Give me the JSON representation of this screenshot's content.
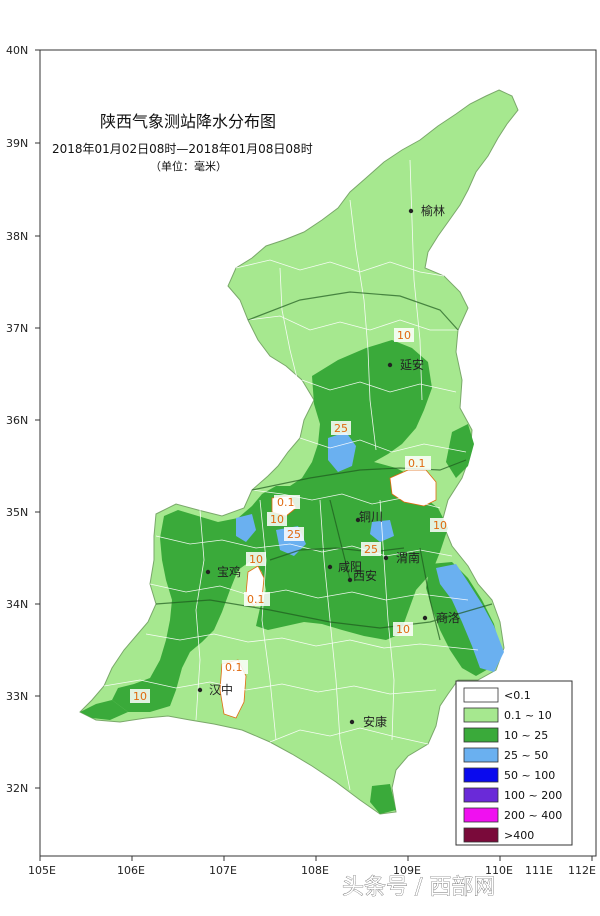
{
  "title": "陕西气象测站降水分布图",
  "subtitle": "2018年01月02日08时—2018年01月08日08时",
  "unit": "（单位：毫米）",
  "x_ticks": [
    "105E",
    "106E",
    "107E",
    "108E",
    "109E",
    "110E",
    "111E",
    "112E"
  ],
  "y_ticks": [
    "40N",
    "39N",
    "38N",
    "37N",
    "36N",
    "35N",
    "34N",
    "33N",
    "32N"
  ],
  "cities": [
    {
      "name": "榆林"
    },
    {
      "name": "延安"
    },
    {
      "name": "铜川"
    },
    {
      "name": "渭南"
    },
    {
      "name": "宝鸡"
    },
    {
      "name": "咸阳"
    },
    {
      "name": "西安"
    },
    {
      "name": "商洛"
    },
    {
      "name": "汉中"
    },
    {
      "name": "安康"
    }
  ],
  "contour_labels": [
    "10",
    "25",
    "0.1",
    "0.1",
    "10",
    "25",
    "25",
    "10",
    "10",
    "0.1",
    "10",
    "0.1",
    "10",
    "10"
  ],
  "legend": [
    {
      "label": "<0.1",
      "color": "#ffffff"
    },
    {
      "label": "0.1 ~ 10",
      "color": "#a6e88f"
    },
    {
      "label": "10 ~ 25",
      "color": "#3aaa3a"
    },
    {
      "label": "25 ~ 50",
      "color": "#6ab0f0"
    },
    {
      "label": "50 ~ 100",
      "color": "#0a0aee"
    },
    {
      "label": "100 ~ 200",
      "color": "#6a2ad8"
    },
    {
      "label": "200 ~ 400",
      "color": "#f010f0"
    },
    {
      "label": ">400",
      "color": "#7a0a3a"
    }
  ],
  "watermark": "头条号 / 西部网",
  "colors": {
    "light": "#a6e88f",
    "mid": "#3aaa3a",
    "blue": "#6ab0f0",
    "boundary": "#ffffff"
  }
}
